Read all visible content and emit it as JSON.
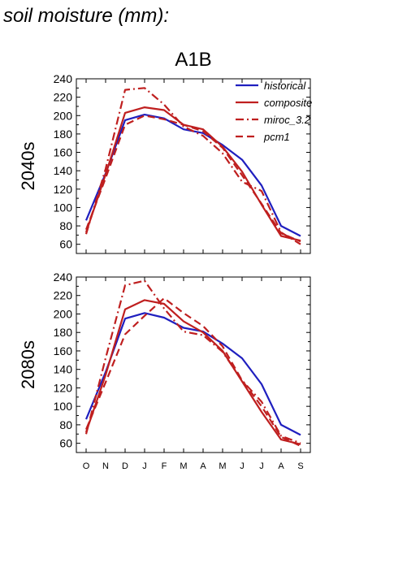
{
  "page_title": "soil moisture (mm):",
  "chart_data": {
    "type": "line",
    "title": "A1B",
    "categories": [
      "O",
      "N",
      "D",
      "J",
      "F",
      "M",
      "A",
      "M",
      "J",
      "J",
      "A",
      "S"
    ],
    "ylim": [
      50,
      240
    ],
    "yticks": [
      60,
      80,
      100,
      120,
      140,
      160,
      180,
      200,
      220,
      240
    ],
    "legend_position": "top-right",
    "panels": [
      {
        "label": "2040s",
        "series": [
          {
            "name": "historical",
            "color": "#1f1fbf",
            "dash": "solid",
            "values": [
              86,
              137,
              195,
              201,
              197,
              185,
              181,
              168,
              152,
              124,
              80,
              69
            ]
          },
          {
            "name": "composite",
            "color": "#bf1f1f",
            "dash": "solid",
            "values": [
              73,
              136,
              203,
              209,
              206,
              190,
              185,
              166,
              139,
              103,
              69,
              64
            ]
          },
          {
            "name": "miroc_3.2",
            "color": "#bf1f1f",
            "dash": "dashdot",
            "values": [
              71,
              142,
              228,
              230,
              212,
              188,
              178,
              159,
              128,
              118,
              73,
              60
            ]
          },
          {
            "name": "pcm1",
            "color": "#bf1f1f",
            "dash": "dash",
            "values": [
              76,
              132,
              190,
              200,
              196,
              190,
              183,
              165,
              135,
              104,
              72,
              63
            ]
          }
        ]
      },
      {
        "label": "2080s",
        "series": [
          {
            "name": "historical",
            "color": "#1f1fbf",
            "dash": "solid",
            "values": [
              86,
              137,
              195,
              201,
              196,
              185,
              181,
              168,
              152,
              124,
              80,
              69
            ]
          },
          {
            "name": "composite",
            "color": "#bf1f1f",
            "dash": "solid",
            "values": [
              72,
              134,
              205,
              215,
              211,
              192,
              180,
              160,
              127,
              94,
              64,
              59
            ]
          },
          {
            "name": "miroc_3.2",
            "color": "#bf1f1f",
            "dash": "dashdot",
            "values": [
              70,
              152,
              231,
              236,
              206,
              181,
              177,
              159,
              128,
              105,
              68,
              60
            ]
          },
          {
            "name": "pcm1",
            "color": "#bf1f1f",
            "dash": "dash",
            "values": [
              75,
              126,
              178,
              198,
              217,
              201,
              187,
              165,
              128,
              100,
              67,
              57
            ]
          }
        ]
      }
    ]
  }
}
